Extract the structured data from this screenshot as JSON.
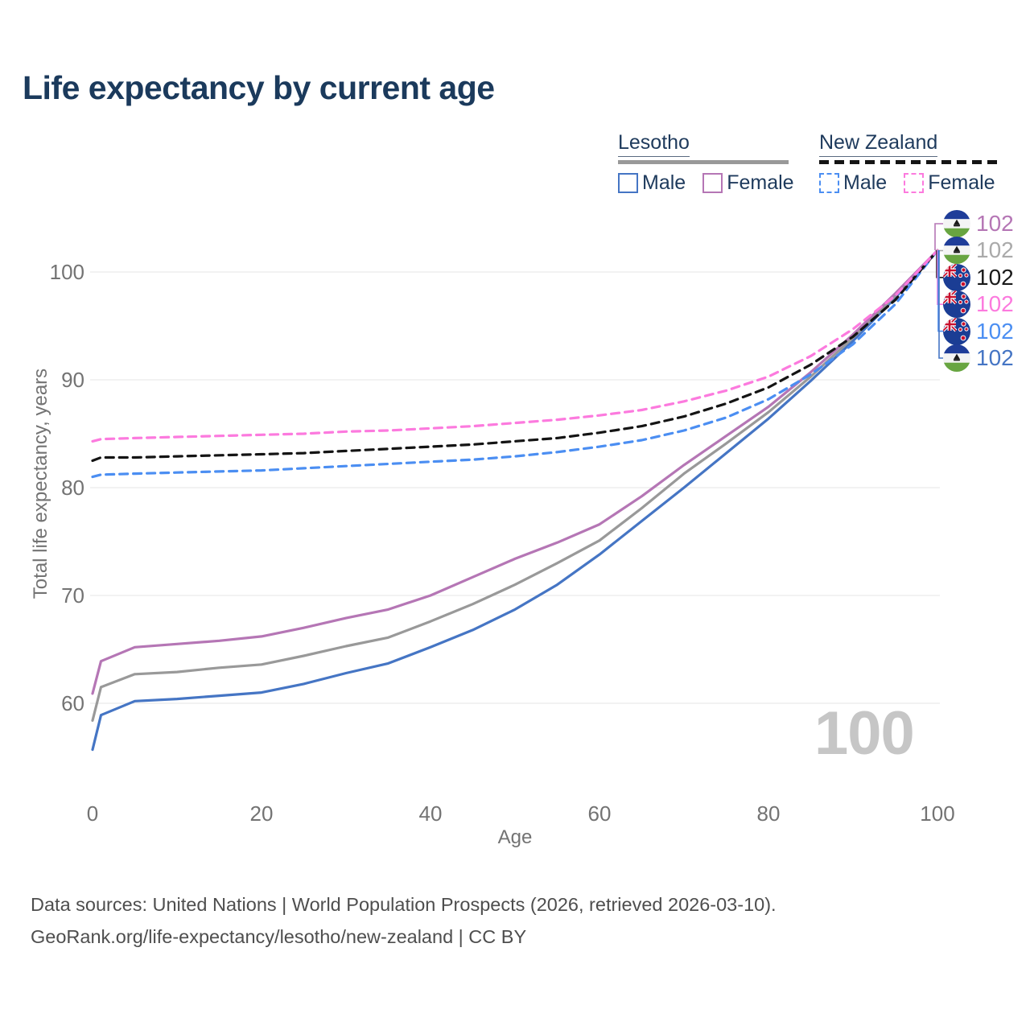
{
  "title": "Life expectancy by current age",
  "legend": {
    "groups": [
      {
        "id": "lesotho",
        "label": "Lesotho",
        "line_style": "solid",
        "line_color": "#999999",
        "items": [
          {
            "label": "Male",
            "color": "#4575c4",
            "style": "solid"
          },
          {
            "label": "Female",
            "color": "#b576b5",
            "style": "solid"
          }
        ]
      },
      {
        "id": "new-zealand",
        "label": "New Zealand",
        "line_style": "dashed",
        "line_color": "#141414",
        "items": [
          {
            "label": "Male",
            "color": "#4b8ef2",
            "style": "dashed"
          },
          {
            "label": "Female",
            "color": "#fc7ade",
            "style": "dashed"
          }
        ]
      }
    ]
  },
  "chart_data": {
    "type": "line",
    "title": "Life expectancy by current age",
    "xlabel": "Age",
    "ylabel": "Total life expectancy, years",
    "xlim": [
      0,
      100
    ],
    "ylim": [
      54,
      104
    ],
    "xticks": [
      0,
      20,
      40,
      60,
      80,
      100
    ],
    "yticks": [
      60,
      70,
      80,
      90,
      100
    ],
    "grid": "horizontal",
    "legend_position": "top-right",
    "x": [
      0,
      1,
      5,
      10,
      15,
      20,
      25,
      30,
      35,
      40,
      45,
      50,
      55,
      60,
      65,
      70,
      75,
      80,
      85,
      90,
      95,
      100
    ],
    "series": [
      {
        "name": "Lesotho Male",
        "country": "lesotho",
        "color": "#4575c4",
        "dash": false,
        "values": [
          55.7,
          58.9,
          60.2,
          60.4,
          60.7,
          61.0,
          61.8,
          62.8,
          63.7,
          65.2,
          66.8,
          68.7,
          71.0,
          73.8,
          76.9,
          80.0,
          83.2,
          86.4,
          89.9,
          93.6,
          97.6,
          102
        ]
      },
      {
        "name": "Lesotho",
        "country": "lesotho",
        "color": "#999999",
        "dash": false,
        "values": [
          58.4,
          61.5,
          62.7,
          62.9,
          63.3,
          63.6,
          64.4,
          65.3,
          66.1,
          67.6,
          69.2,
          71.0,
          73.0,
          75.1,
          78.1,
          81.3,
          84.1,
          87.0,
          90.3,
          93.9,
          97.8,
          102
        ]
      },
      {
        "name": "Lesotho Female",
        "country": "lesotho",
        "color": "#b576b5",
        "dash": false,
        "values": [
          60.9,
          63.9,
          65.2,
          65.5,
          65.8,
          66.2,
          67.0,
          67.9,
          68.7,
          70.0,
          71.7,
          73.4,
          74.9,
          76.6,
          79.2,
          82.1,
          84.8,
          87.5,
          90.7,
          94.2,
          98.0,
          102
        ]
      },
      {
        "name": "New Zealand Male",
        "country": "new-zealand",
        "color": "#4b8ef2",
        "dash": true,
        "values": [
          81.0,
          81.2,
          81.3,
          81.4,
          81.5,
          81.6,
          81.8,
          82.0,
          82.2,
          82.4,
          82.6,
          82.9,
          83.3,
          83.8,
          84.4,
          85.3,
          86.5,
          88.2,
          90.5,
          93.3,
          97.0,
          102
        ]
      },
      {
        "name": "New Zealand",
        "country": "new-zealand",
        "color": "#141414",
        "dash": true,
        "values": [
          82.5,
          82.8,
          82.8,
          82.9,
          83.0,
          83.1,
          83.2,
          83.4,
          83.6,
          83.8,
          84.0,
          84.3,
          84.6,
          85.1,
          85.7,
          86.6,
          87.8,
          89.3,
          91.4,
          94.0,
          97.4,
          102
        ]
      },
      {
        "name": "New Zealand Female",
        "country": "new-zealand",
        "color": "#fc7ade",
        "dash": true,
        "values": [
          84.3,
          84.5,
          84.6,
          84.7,
          84.8,
          84.9,
          85.0,
          85.2,
          85.3,
          85.5,
          85.7,
          86.0,
          86.3,
          86.7,
          87.2,
          88.0,
          89.0,
          90.3,
          92.2,
          94.7,
          97.8,
          102
        ]
      }
    ]
  },
  "end_labels": [
    {
      "series": "Lesotho Female",
      "flag": "lesotho",
      "value": "102",
      "color": "#b576b5"
    },
    {
      "series": "Lesotho",
      "flag": "lesotho",
      "value": "102",
      "color": "#aaaaaa"
    },
    {
      "series": "New Zealand",
      "flag": "new-zealand",
      "value": "102",
      "color": "#1a1a1a"
    },
    {
      "series": "New Zealand Female",
      "flag": "new-zealand",
      "value": "102",
      "color": "#fc7ade"
    },
    {
      "series": "New Zealand Male",
      "flag": "new-zealand",
      "value": "102",
      "color": "#4b8ef2"
    },
    {
      "series": "Lesotho Male",
      "flag": "lesotho",
      "value": "102",
      "color": "#4575c4"
    }
  ],
  "watermark": "100",
  "footer": {
    "line1": "Data sources: United Nations | World Population Prospects (2026, retrieved 2026-03-10).",
    "line2": "GeoRank.org/life-expectancy/lesotho/new-zealand | CC BY"
  }
}
